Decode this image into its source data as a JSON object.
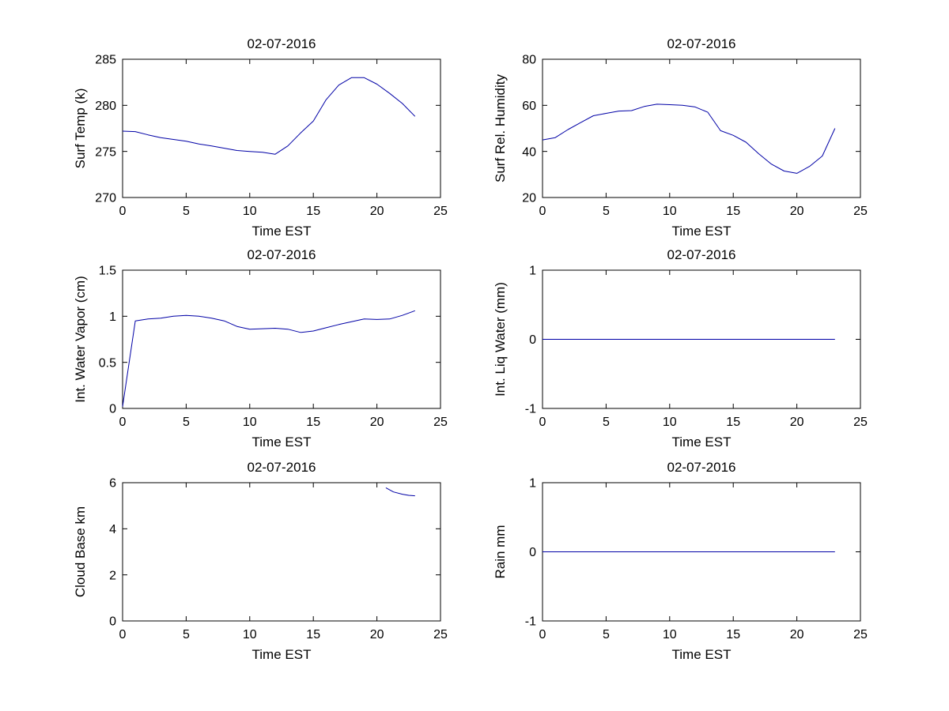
{
  "figure": {
    "background": "#ffffff",
    "date_title": "02-07-2016",
    "axis_color": "#000000",
    "line_color": "#0000A6"
  },
  "chart_data": [
    {
      "id": "surf-temp",
      "type": "line",
      "title": "02-07-2016",
      "xlabel": "Time EST",
      "ylabel": "Surf Temp (k)",
      "xlim": [
        0,
        25
      ],
      "ylim": [
        270,
        285
      ],
      "xticks": [
        0,
        5,
        10,
        15,
        20,
        25
      ],
      "yticks": [
        270,
        275,
        280,
        285
      ],
      "grid": false,
      "legend": null,
      "line_color": "#0000A6",
      "x": [
        0,
        1,
        2,
        3,
        4,
        5,
        6,
        7,
        8,
        9,
        10,
        11,
        12,
        13,
        14,
        15,
        16,
        17,
        18,
        19,
        20,
        21,
        22,
        23
      ],
      "y": [
        277.2,
        277.15,
        276.8,
        276.5,
        276.3,
        276.1,
        275.8,
        275.6,
        275.35,
        275.1,
        275.0,
        274.9,
        274.7,
        275.6,
        277.0,
        278.3,
        280.6,
        282.2,
        283.0,
        283.0,
        282.3,
        281.3,
        280.2,
        278.8
      ]
    },
    {
      "id": "surf-rel-humidity",
      "type": "line",
      "title": "02-07-2016",
      "xlabel": "Time EST",
      "ylabel": "Surf Rel. Humidity",
      "xlim": [
        0,
        25
      ],
      "ylim": [
        20,
        80
      ],
      "xticks": [
        0,
        5,
        10,
        15,
        20,
        25
      ],
      "yticks": [
        20,
        40,
        60,
        80
      ],
      "grid": false,
      "legend": null,
      "line_color": "#0000A6",
      "x": [
        0,
        1,
        2,
        3,
        4,
        5,
        6,
        7,
        8,
        9,
        10,
        11,
        12,
        13,
        14,
        15,
        16,
        17,
        18,
        19,
        20,
        21,
        22,
        23
      ],
      "y": [
        45,
        46,
        49.5,
        52.5,
        55.5,
        56.5,
        57.5,
        57.7,
        59.5,
        60.5,
        60.3,
        60.0,
        59.3,
        57.0,
        49.0,
        47.0,
        44.0,
        39.0,
        34.5,
        31.5,
        30.5,
        33.5,
        38.0,
        50.0
      ]
    },
    {
      "id": "int-water-vapor",
      "type": "line",
      "title": "02-07-2016",
      "xlabel": "Time EST",
      "ylabel": "Int. Water Vapor (cm)",
      "xlim": [
        0,
        25
      ],
      "ylim": [
        0,
        1.5
      ],
      "xticks": [
        0,
        5,
        10,
        15,
        20,
        25
      ],
      "yticks": [
        0,
        0.5,
        1,
        1.5
      ],
      "grid": false,
      "legend": null,
      "line_color": "#0000A6",
      "x": [
        0,
        1,
        2,
        3,
        4,
        5,
        6,
        7,
        8,
        9,
        10,
        11,
        12,
        13,
        14,
        15,
        16,
        17,
        18,
        19,
        20,
        21,
        22,
        23
      ],
      "y": [
        0.02,
        0.95,
        0.97,
        0.98,
        1.0,
        1.01,
        1.0,
        0.98,
        0.95,
        0.89,
        0.86,
        0.865,
        0.87,
        0.86,
        0.825,
        0.84,
        0.875,
        0.91,
        0.94,
        0.97,
        0.965,
        0.97,
        1.01,
        1.06
      ]
    },
    {
      "id": "int-liq-water",
      "type": "line",
      "title": "02-07-2016",
      "xlabel": "Time EST",
      "ylabel": "Int. Liq Water (mm)",
      "xlim": [
        0,
        25
      ],
      "ylim": [
        -1,
        1
      ],
      "xticks": [
        0,
        5,
        10,
        15,
        20,
        25
      ],
      "yticks": [
        -1,
        0,
        1
      ],
      "grid": false,
      "legend": null,
      "line_color": "#0000A6",
      "x": [
        0,
        1,
        2,
        3,
        4,
        5,
        6,
        7,
        8,
        9,
        10,
        11,
        12,
        13,
        14,
        15,
        16,
        17,
        18,
        19,
        20,
        21,
        22,
        23
      ],
      "y": [
        0,
        0,
        0,
        0,
        0,
        0,
        0,
        0,
        0,
        0,
        0,
        0,
        0,
        0,
        0,
        0,
        0,
        0,
        0,
        0,
        0,
        0,
        0,
        0
      ]
    },
    {
      "id": "cloud-base",
      "type": "line",
      "title": "02-07-2016",
      "xlabel": "Time EST",
      "ylabel": "Cloud Base km",
      "xlim": [
        0,
        25
      ],
      "ylim": [
        0,
        6
      ],
      "xticks": [
        0,
        5,
        10,
        15,
        20,
        25
      ],
      "yticks": [
        0,
        2,
        4,
        6
      ],
      "grid": false,
      "legend": null,
      "line_color": "#0000A6",
      "x": [
        20.7,
        21.3,
        22,
        22.5,
        23
      ],
      "y": [
        5.78,
        5.6,
        5.5,
        5.45,
        5.43
      ]
    },
    {
      "id": "rain",
      "type": "line",
      "title": "02-07-2016",
      "xlabel": "Time EST",
      "ylabel": "Rain mm",
      "xlim": [
        0,
        25
      ],
      "ylim": [
        -1,
        1
      ],
      "xticks": [
        0,
        5,
        10,
        15,
        20,
        25
      ],
      "yticks": [
        -1,
        0,
        1
      ],
      "grid": false,
      "legend": null,
      "line_color": "#0000A6",
      "x": [
        0,
        1,
        2,
        3,
        4,
        5,
        6,
        7,
        8,
        9,
        10,
        11,
        12,
        13,
        14,
        15,
        16,
        17,
        18,
        19,
        20,
        21,
        22,
        23
      ],
      "y": [
        0,
        0,
        0,
        0,
        0,
        0,
        0,
        0,
        0,
        0,
        0,
        0,
        0,
        0,
        0,
        0,
        0,
        0,
        0,
        0,
        0,
        0,
        0,
        0
      ]
    }
  ]
}
